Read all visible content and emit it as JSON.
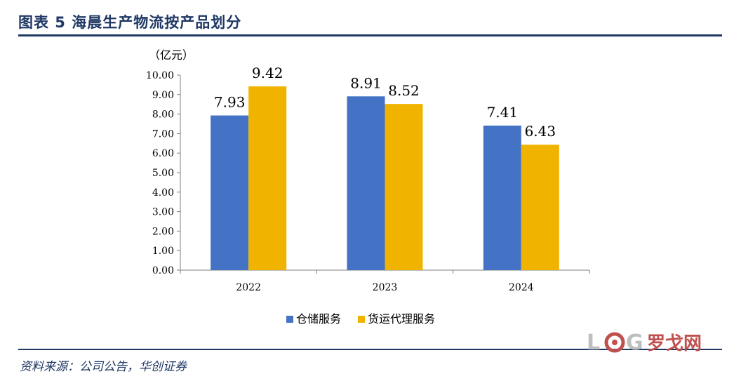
{
  "header": {
    "title": "图表 5   海晨生产物流按产品划分"
  },
  "footer": {
    "source": "资料来源：公司公告，华创证券"
  },
  "watermark": {
    "text": "LOG罗戈网"
  },
  "colors": {
    "header": "#1f3864",
    "series_1": "#4472c4",
    "series_2": "#f0b400",
    "watermark_red": "#c0504d",
    "watermark_gray": "#bfbfbf"
  },
  "chart_data": {
    "type": "bar",
    "title": "",
    "ylabel": "（亿元）",
    "xlabel": "",
    "categories": [
      "2022",
      "2023",
      "2024"
    ],
    "series": [
      {
        "name": "仓储服务",
        "values": [
          7.93,
          8.91,
          7.41
        ],
        "color": "#4472c4"
      },
      {
        "name": "货运代理服务",
        "values": [
          9.42,
          8.52,
          6.43
        ],
        "color": "#f0b400"
      }
    ],
    "ylim": [
      0,
      10
    ],
    "yticks": [
      "0.00",
      "1.00",
      "2.00",
      "3.00",
      "4.00",
      "5.00",
      "6.00",
      "7.00",
      "8.00",
      "9.00",
      "10.00"
    ],
    "data_labels": [
      [
        "7.93",
        "8.91",
        "7.41"
      ],
      [
        "9.42",
        "8.52",
        "6.43"
      ]
    ],
    "grid": false,
    "legend": "bottom"
  }
}
